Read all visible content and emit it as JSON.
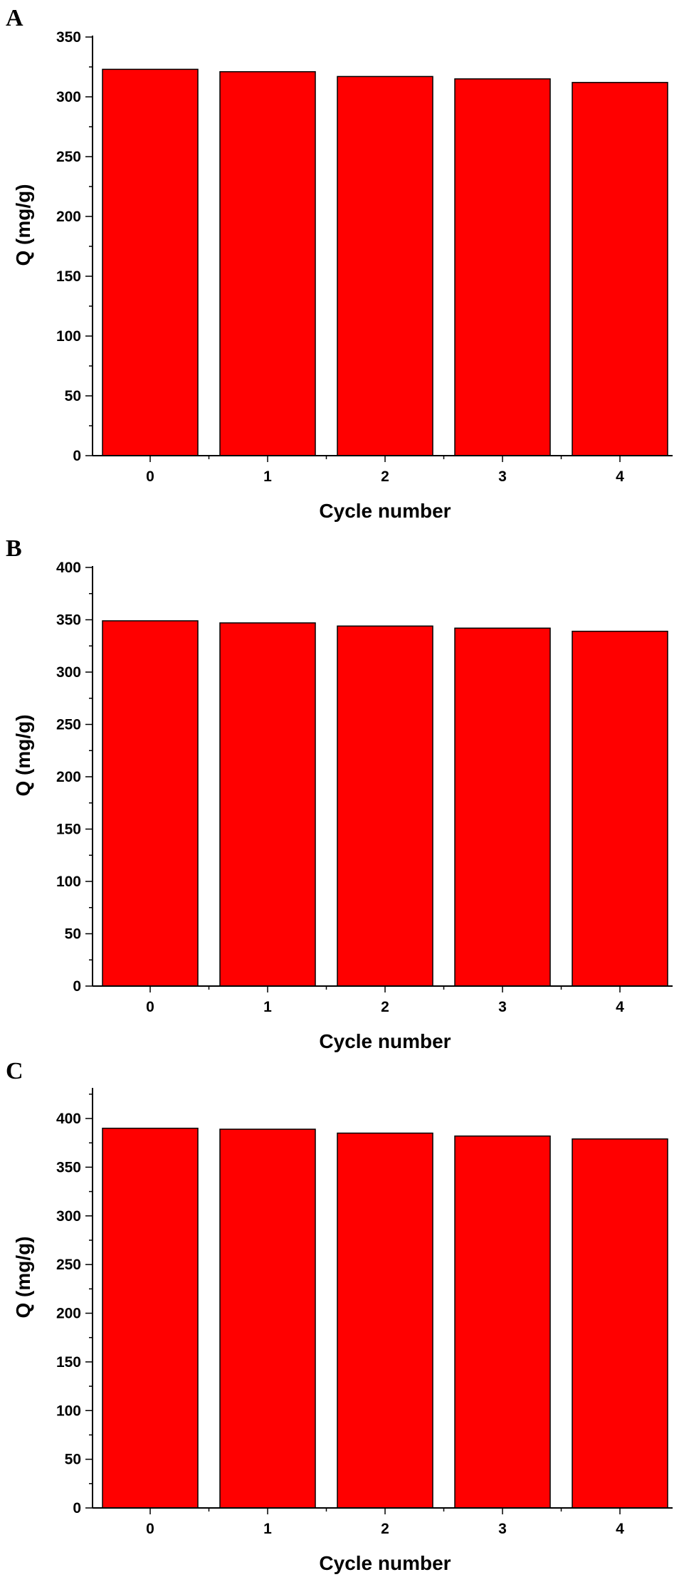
{
  "chart_data": [
    {
      "panel": "A",
      "type": "bar",
      "categories": [
        "0",
        "1",
        "2",
        "3",
        "4"
      ],
      "values": [
        323,
        321,
        317,
        315,
        312
      ],
      "xlabel": "Cycle number",
      "ylabel": "Q (mg/g)",
      "ylim": [
        0,
        350
      ],
      "yticks": [
        0,
        50,
        100,
        150,
        200,
        250,
        300,
        350
      ],
      "color": "#ff0000",
      "grid": false
    },
    {
      "panel": "B",
      "type": "bar",
      "categories": [
        "0",
        "1",
        "2",
        "3",
        "4"
      ],
      "values": [
        349,
        347,
        344,
        342,
        339
      ],
      "xlabel": "Cycle number",
      "ylabel": "Q (mg/g)",
      "ylim": [
        0,
        400
      ],
      "yticks": [
        0,
        50,
        100,
        150,
        200,
        250,
        300,
        350,
        400
      ],
      "color": "#ff0000",
      "grid": false
    },
    {
      "panel": "C",
      "type": "bar",
      "categories": [
        "0",
        "1",
        "2",
        "3",
        "4"
      ],
      "values": [
        390,
        389,
        385,
        382,
        379
      ],
      "xlabel": "Cycle number",
      "ylabel": "Q (mg/g)",
      "ylim": [
        0,
        430
      ],
      "yticks": [
        0,
        50,
        100,
        150,
        200,
        250,
        300,
        350,
        400
      ],
      "color": "#ff0000",
      "grid": false
    }
  ]
}
